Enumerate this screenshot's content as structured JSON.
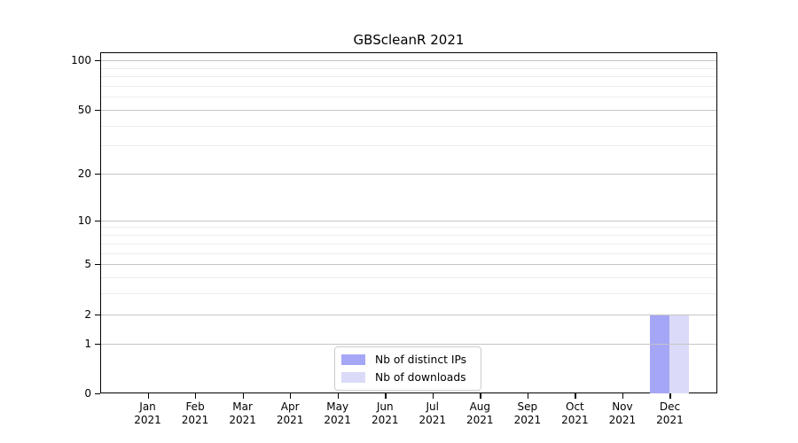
{
  "chart_data": {
    "type": "bar",
    "title": "GBScleanR 2021",
    "categories": [
      "Jan",
      "Feb",
      "Mar",
      "Apr",
      "May",
      "Jun",
      "Jul",
      "Aug",
      "Sep",
      "Oct",
      "Nov",
      "Dec"
    ],
    "category_year": "2021",
    "series": [
      {
        "name": "Nb of distinct IPs",
        "color": "#a6a6f7",
        "values": [
          0,
          0,
          0,
          0,
          0,
          0,
          0,
          0,
          0,
          0,
          0,
          2
        ]
      },
      {
        "name": "Nb of downloads",
        "color": "#dbdbf9",
        "values": [
          0,
          0,
          0,
          0,
          0,
          0,
          0,
          0,
          0,
          0,
          0,
          2
        ]
      }
    ],
    "y_scale": "log1p",
    "y_ticks": [
      0,
      1,
      2,
      5,
      10,
      20,
      50,
      100
    ],
    "y_minor_ticks": [
      3,
      4,
      6,
      7,
      8,
      9,
      30,
      40,
      60,
      70,
      80,
      90
    ],
    "ylim": [
      0,
      112
    ],
    "grid": {
      "major_color": "#c4c4c4",
      "minor_color": "#ededed"
    },
    "legend": {
      "position": "lower center"
    }
  }
}
